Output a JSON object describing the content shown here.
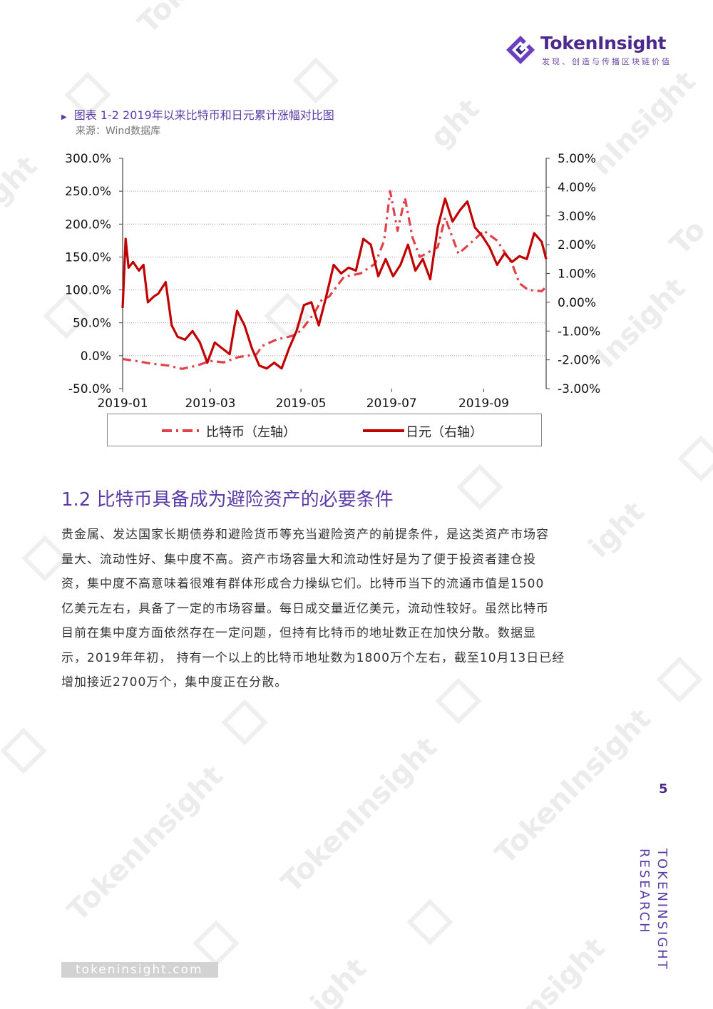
{
  "header": {
    "logo_name": "TokenInsight",
    "slogan": "发现、创造与传播区块链价值"
  },
  "figure": {
    "title": "图表 1-2 2019年以来比特币和日元累计涨幅对比图",
    "source": "来源：Wind数据库"
  },
  "chart_data": {
    "type": "line",
    "title": "",
    "x_ticks": [
      "2019-01",
      "2019-03",
      "2019-05",
      "2019-07",
      "2019-09"
    ],
    "x_range": [
      "2019-01-01",
      "2019-10-13"
    ],
    "y_left": {
      "min": -50,
      "max": 300,
      "ticks": [
        "-50.0%",
        "0.0%",
        "50.0%",
        "100.0%",
        "150.0%",
        "200.0%",
        "250.0%",
        "300.0%"
      ]
    },
    "y_right": {
      "min": -3,
      "max": 5,
      "ticks": [
        "-3.00%",
        "-2.00%",
        "-1.00%",
        "0.00%",
        "1.00%",
        "2.00%",
        "3.00%",
        "4.00%",
        "5.00%"
      ]
    },
    "grid": "horizontal",
    "legend_position": "bottom",
    "series": [
      {
        "name": "比特币（左轴）",
        "axis": "left",
        "style": "dash-dot",
        "color": "#e0424a",
        "x": [
          "2019-01-01",
          "2019-01-10",
          "2019-01-20",
          "2019-02-01",
          "2019-02-10",
          "2019-02-20",
          "2019-03-01",
          "2019-03-10",
          "2019-03-20",
          "2019-04-01",
          "2019-04-05",
          "2019-04-15",
          "2019-04-25",
          "2019-05-01",
          "2019-05-10",
          "2019-05-15",
          "2019-05-20",
          "2019-05-30",
          "2019-06-10",
          "2019-06-20",
          "2019-06-26",
          "2019-06-30",
          "2019-07-05",
          "2019-07-10",
          "2019-07-15",
          "2019-07-20",
          "2019-08-01",
          "2019-08-06",
          "2019-08-15",
          "2019-08-25",
          "2019-09-01",
          "2019-09-10",
          "2019-09-20",
          "2019-09-25",
          "2019-10-01",
          "2019-10-10",
          "2019-10-13"
        ],
        "y": [
          -5,
          -8,
          -12,
          -15,
          -20,
          -15,
          -8,
          -10,
          -2,
          2,
          15,
          25,
          30,
          38,
          65,
          85,
          90,
          120,
          125,
          140,
          175,
          250,
          190,
          240,
          180,
          150,
          165,
          210,
          155,
          175,
          190,
          175,
          140,
          110,
          100,
          98,
          105
        ]
      },
      {
        "name": "日元（右轴）",
        "axis": "right",
        "style": "solid",
        "color": "#c00000",
        "x": [
          "2019-01-01",
          "2019-01-03",
          "2019-01-05",
          "2019-01-08",
          "2019-01-12",
          "2019-01-15",
          "2019-01-18",
          "2019-01-22",
          "2019-01-25",
          "2019-01-30",
          "2019-02-03",
          "2019-02-07",
          "2019-02-12",
          "2019-02-17",
          "2019-02-22",
          "2019-02-27",
          "2019-03-04",
          "2019-03-09",
          "2019-03-14",
          "2019-03-19",
          "2019-03-24",
          "2019-03-29",
          "2019-04-03",
          "2019-04-08",
          "2019-04-13",
          "2019-04-18",
          "2019-04-23",
          "2019-04-28",
          "2019-05-03",
          "2019-05-08",
          "2019-05-13",
          "2019-05-18",
          "2019-05-23",
          "2019-05-28",
          "2019-06-02",
          "2019-06-07",
          "2019-06-12",
          "2019-06-17",
          "2019-06-22",
          "2019-06-27",
          "2019-07-02",
          "2019-07-07",
          "2019-07-12",
          "2019-07-17",
          "2019-07-22",
          "2019-07-27",
          "2019-08-01",
          "2019-08-06",
          "2019-08-11",
          "2019-08-16",
          "2019-08-21",
          "2019-08-26",
          "2019-08-31",
          "2019-09-05",
          "2019-09-10",
          "2019-09-15",
          "2019-09-20",
          "2019-09-25",
          "2019-09-30",
          "2019-10-05",
          "2019-10-10",
          "2019-10-13"
        ],
        "y": [
          -0.2,
          2.2,
          1.2,
          1.4,
          1.1,
          1.3,
          0.0,
          0.2,
          0.3,
          0.7,
          -0.8,
          -1.2,
          -1.3,
          -1.0,
          -1.4,
          -2.1,
          -1.4,
          -1.6,
          -1.8,
          -0.3,
          -0.8,
          -1.6,
          -2.2,
          -2.3,
          -2.1,
          -2.3,
          -1.6,
          -1.0,
          -0.1,
          0.0,
          -0.8,
          0.2,
          1.3,
          1.0,
          1.2,
          1.1,
          2.2,
          2.0,
          0.9,
          1.5,
          0.9,
          1.3,
          2.0,
          1.1,
          1.5,
          0.8,
          2.6,
          3.6,
          2.8,
          3.2,
          3.5,
          2.6,
          2.3,
          1.9,
          1.3,
          1.7,
          1.4,
          1.6,
          1.5,
          2.4,
          2.1,
          1.5
        ]
      }
    ]
  },
  "section": {
    "heading": "1.2 比特币具备成为避险资产的必要条件",
    "lines": [
      "贵金属、发达国家长期债券和避险货币等充当避险资产的前提条件，是这类资产市场容",
      "量大、流动性好、集中度不高。资产市场容量大和流动性好是为了便于投资者建仓投",
      "资，集中度不高意味着很难有群体形成合力操纵它们。比特币当下的流通市值是1500",
      "亿美元左右，具备了一定的市场容量。每日成交量近亿美元，流动性较好。虽然比特币",
      "目前在集中度方面依然存在一定问题，但持有比特币的地址数正在加快分散。数据显",
      "示，2019年年初， 持有一个以上的比特币地址数为1800万个左右，截至10月13日已经",
      "增加接近2700万个，集中度正在分散。"
    ]
  },
  "footer": {
    "page_number": "5",
    "vertical_brand": "TOKENINSIGHT",
    "vertical_sub": "RESEARCH",
    "url": "tokeninsight.com"
  },
  "colors": {
    "brand_purple": "#5c3ba7",
    "btc_line": "#e0424a",
    "jpy_line": "#c00000"
  }
}
